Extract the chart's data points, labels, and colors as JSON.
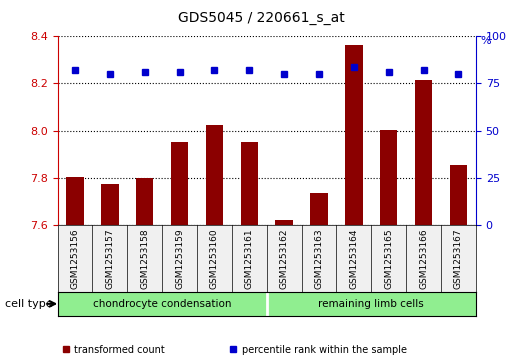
{
  "title": "GDS5045 / 220661_s_at",
  "samples": [
    "GSM1253156",
    "GSM1253157",
    "GSM1253158",
    "GSM1253159",
    "GSM1253160",
    "GSM1253161",
    "GSM1253162",
    "GSM1253163",
    "GSM1253164",
    "GSM1253165",
    "GSM1253166",
    "GSM1253167"
  ],
  "transformed_count": [
    7.805,
    7.775,
    7.8,
    7.95,
    8.025,
    7.95,
    7.62,
    7.735,
    8.365,
    8.005,
    8.215,
    7.855
  ],
  "percentile_rank": [
    82,
    80,
    81,
    81,
    82,
    82,
    80,
    80,
    84,
    81,
    82,
    80
  ],
  "ylim_left": [
    7.6,
    8.4
  ],
  "ylim_right": [
    0,
    100
  ],
  "yticks_left": [
    7.6,
    7.8,
    8.0,
    8.2,
    8.4
  ],
  "yticks_right": [
    0,
    25,
    50,
    75,
    100
  ],
  "groups": [
    {
      "label": "chondrocyte condensation",
      "start": 0,
      "end": 6,
      "color": "#90ee90"
    },
    {
      "label": "remaining limb cells",
      "start": 6,
      "end": 12,
      "color": "#90ee90"
    }
  ],
  "cell_type_label": "cell type",
  "bar_color": "#8B0000",
  "dot_color": "#0000CD",
  "bar_width": 0.5,
  "grid_color": "black",
  "grid_style": "dotted",
  "background_color": "#f0f0f0",
  "plot_bg": "white",
  "legend_items": [
    {
      "label": "transformed count",
      "color": "#8B0000"
    },
    {
      "label": "percentile rank within the sample",
      "color": "#0000CD"
    }
  ],
  "n_chondrocyte": 6,
  "n_remaining": 6
}
